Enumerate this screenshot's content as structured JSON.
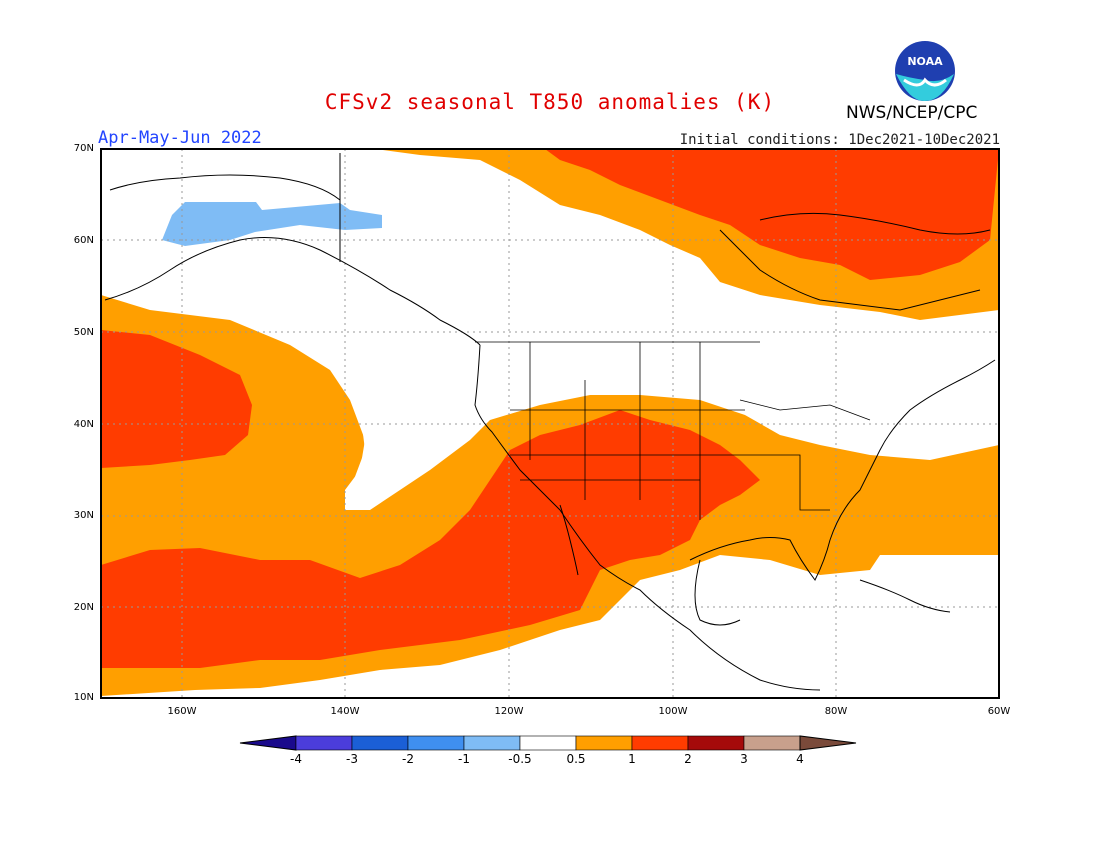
{
  "title": "CFSv2 seasonal T850 anomalies (K)",
  "period": "Apr-May-Jun 2022",
  "initial_conditions": "Initial conditions: 1Dec2021-10Dec2021",
  "agency": "NWS/NCEP/CPC",
  "logo_text": "NOAA",
  "lat_labels": [
    "70N",
    "60N",
    "50N",
    "40N",
    "30N",
    "20N",
    "10N"
  ],
  "lon_labels": [
    "160W",
    "140W",
    "120W",
    "100W",
    "80W",
    "60W"
  ],
  "colorbar": {
    "labels": [
      "-4",
      "-3",
      "-2",
      "-1",
      "-0.5",
      "0.5",
      "1",
      "2",
      "3",
      "4"
    ],
    "colors": [
      "#1a0a8c",
      "#4b3ddb",
      "#1b5fd6",
      "#3f8ff0",
      "#7fbcf5",
      "#ffffff",
      "#ff9f00",
      "#ff3c00",
      "#a50a0a",
      "#c8a08c",
      "#7a4a3a"
    ]
  },
  "colors": {
    "orange": "#ff9f00",
    "red": "#ff3c00",
    "light_blue": "#7fbcf5"
  }
}
